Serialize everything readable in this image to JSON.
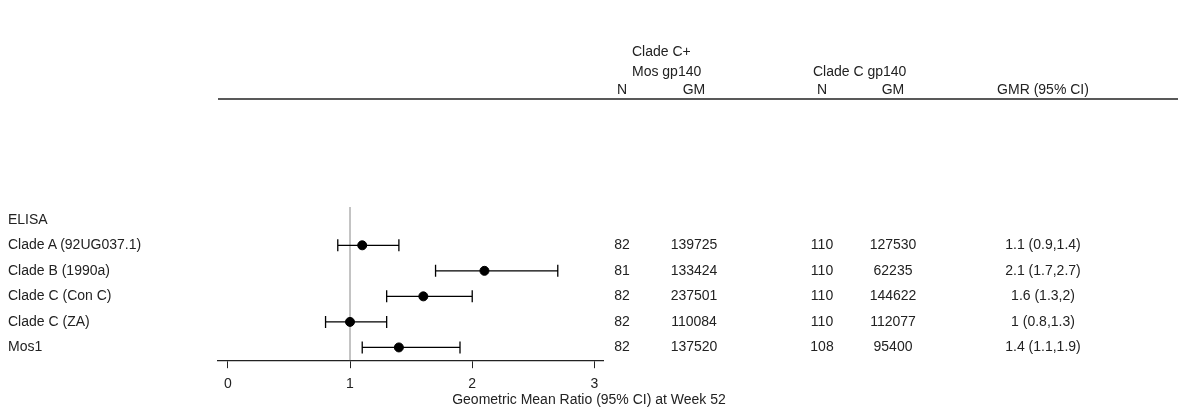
{
  "chart_data": {
    "type": "scatter",
    "orientation": "horizontal",
    "marker": "circle",
    "grid": false,
    "legend": false,
    "xlabel": "Geometric Mean Ratio (95% CI) at Week 52",
    "categories": [
      "ELISA",
      "Clade A (92UG037.1)",
      "Clade B (1990a)",
      "Clade C (Con C)",
      "Clade C (ZA)",
      "Mos1"
    ],
    "xlim": [
      -0.08,
      3.07
    ],
    "xticks": [
      0,
      1,
      2,
      3
    ],
    "series": [
      {
        "color": "#000000",
        "values": [
          null,
          1.1,
          2.1,
          1.6,
          1,
          1.4
        ],
        "errors": [
          null,
          [
            0.9,
            1.4
          ],
          [
            1.7,
            2.7
          ],
          [
            1.3,
            2
          ],
          [
            0.8,
            1.3
          ],
          [
            1.1,
            1.9
          ]
        ]
      }
    ],
    "ref_lines": [
      {
        "axis": "x",
        "value": 1,
        "color": "#888888"
      }
    ],
    "annotations": [
      "Clade C+\nMos gp140",
      "Clade C gp140",
      "N",
      "GM",
      "N",
      "GM",
      "GMR (95% CI)",
      "82",
      "139725",
      "110",
      "127530",
      "1.1 (0.9,1.4)",
      "81",
      "133424",
      "110",
      "62235",
      "2.1 (1.7,2.7)",
      "82",
      "237501",
      "110",
      "144622",
      "1.6 (1.3,2)",
      "82",
      "110084",
      "110",
      "112077",
      "1 (0.8,1.3)",
      "82",
      "137520",
      "108",
      "95400",
      "1.4 (1.1,1.9)"
    ]
  }
}
